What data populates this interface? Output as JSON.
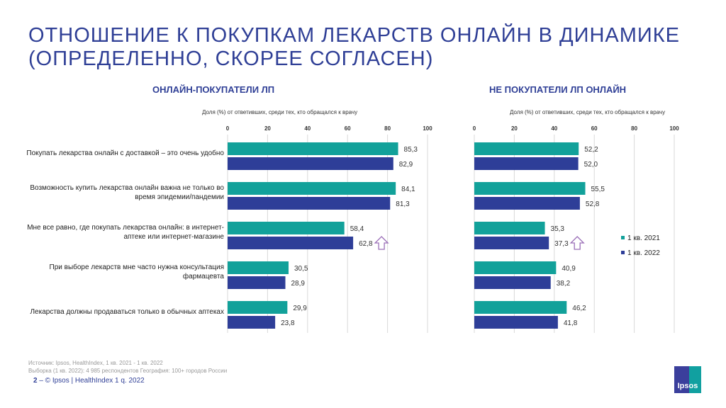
{
  "title_line1": "ОТНОШЕНИЕ К ПОКУПКАМ ЛЕКАРСТВ ОНЛАЙН В ДИНАМИКЕ",
  "title_line2": "(ОПРЕДЕЛЕННО, СКОРЕЕ СОГЛАСЕН)",
  "source": "Источник: Ipsos, HealthIndex, 1 кв. 2021 - 1 кв. 2022",
  "sample": "Выборка (1 кв. 2022): 4 985 респондентов География: 100+ городов России",
  "page_number": "2",
  "footer": "– © Ipsos | HealthIndex 1 q. 2022",
  "logo_text": "Ipsos",
  "colors": {
    "s2021": "#12a19a",
    "s2022": "#2e3e98",
    "arrow": "#9b6fb8"
  },
  "chart_data": [
    {
      "type": "bar",
      "title": "ОНЛАЙН-ПОКУПАТЕЛИ ЛП",
      "xlabel": "Доля (%) от ответивших,  среди тех, кто обращался к врачу",
      "xlim": [
        0,
        100
      ],
      "ticks": [
        "0",
        "20",
        "40",
        "60",
        "80",
        "100"
      ],
      "categories": [
        "Покупать лекарства онлайн с доставкой – это очень удобно",
        "Возможность купить лекарства онлайн важна не только во время эпидемии/пандемии",
        "Мне все равно, где покупать лекарства онлайн: в интернет-аптеке или интернет-магазине",
        "При выборе лекарств мне часто нужна консультация фармацевта",
        "Лекарства должны продаваться только в обычных аптеках"
      ],
      "series": [
        {
          "name": "1 кв. 2021",
          "values": [
            85.3,
            84.1,
            58.4,
            30.5,
            29.9
          ],
          "labels": [
            "85,3",
            "84,1",
            "58,4",
            "30,5",
            "29,9"
          ]
        },
        {
          "name": "1 кв. 2022",
          "values": [
            82.9,
            81.3,
            62.8,
            28.9,
            23.8
          ],
          "labels": [
            "82,9",
            "81,3",
            "62,8",
            "28,9",
            "23,8"
          ]
        }
      ],
      "up_arrow_category_index": 2
    },
    {
      "type": "bar",
      "title": "НЕ ПОКУПАТЕЛИ ЛП ОНЛАЙН",
      "xlabel": "Доля (%) от ответивших,  среди тех, кто обращался к врачу",
      "xlim": [
        0,
        100
      ],
      "ticks": [
        "0",
        "20",
        "40",
        "60",
        "80",
        "100"
      ],
      "series": [
        {
          "name": "1 кв. 2021",
          "values": [
            52.2,
            55.5,
            35.3,
            40.9,
            46.2
          ],
          "labels": [
            "52,2",
            "55,5",
            "35,3",
            "40,9",
            "46,2"
          ]
        },
        {
          "name": "1 кв. 2022",
          "values": [
            52.0,
            52.8,
            37.3,
            38.2,
            41.8
          ],
          "labels": [
            "52,0",
            "52,8",
            "37,3",
            "38,2",
            "41,8"
          ]
        }
      ],
      "up_arrow_category_index": 2,
      "legend": "right"
    }
  ]
}
